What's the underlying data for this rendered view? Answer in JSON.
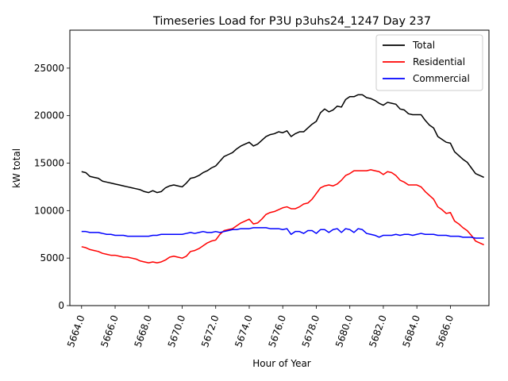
{
  "chart_data": {
    "type": "line",
    "title": "Timeseries Load for P3U p3uhs24_1247  Day 237",
    "xlabel": "Hour of Year",
    "ylabel": "kW total",
    "xlim": [
      5663.3,
      5688.3
    ],
    "ylim": [
      0,
      29000
    ],
    "xticks": [
      5664.0,
      5666.0,
      5668.0,
      5670.0,
      5672.0,
      5674.0,
      5676.0,
      5678.0,
      5680.0,
      5682.0,
      5684.0,
      5686.0
    ],
    "xtick_labels": [
      "5664.0",
      "5666.0",
      "5668.0",
      "5670.0",
      "5672.0",
      "5674.0",
      "5676.0",
      "5678.0",
      "5680.0",
      "5682.0",
      "5684.0",
      "5686.0"
    ],
    "yticks": [
      0,
      5000,
      10000,
      15000,
      20000,
      25000
    ],
    "ytick_labels": [
      "0",
      "5000",
      "10000",
      "15000",
      "20000",
      "25000"
    ],
    "legend_position": "top-right",
    "x_start": 5664.0,
    "x_step": 0.25,
    "series": [
      {
        "name": "Total",
        "color": "#000000",
        "values": [
          14100,
          14000,
          13600,
          13500,
          13400,
          13100,
          13000,
          12900,
          12800,
          12700,
          12600,
          12500,
          12400,
          12300,
          12200,
          12000,
          11900,
          12100,
          11900,
          12000,
          12400,
          12600,
          12700,
          12600,
          12500,
          12900,
          13400,
          13500,
          13700,
          14000,
          14200,
          14500,
          14700,
          15200,
          15700,
          15900,
          16100,
          16500,
          16800,
          17000,
          17200,
          16800,
          17000,
          17400,
          17800,
          18000,
          18100,
          18300,
          18200,
          18400,
          17800,
          18100,
          18300,
          18300,
          18700,
          19100,
          19400,
          20300,
          20700,
          20400,
          20600,
          21000,
          20900,
          21700,
          22000,
          22000,
          22200,
          22200,
          21900,
          21800,
          21600,
          21300,
          21100,
          21400,
          21300,
          21200,
          20700,
          20600,
          20200,
          20100,
          20100,
          20100,
          19500,
          19000,
          18700,
          17800,
          17500,
          17200,
          17100,
          16200,
          15800,
          15400,
          15100,
          14500,
          13900,
          13700,
          13500
        ]
      },
      {
        "name": "Residential",
        "color": "#ff0000",
        "values": [
          6200,
          6100,
          5900,
          5800,
          5700,
          5500,
          5400,
          5300,
          5300,
          5200,
          5100,
          5100,
          5000,
          4900,
          4700,
          4600,
          4500,
          4600,
          4500,
          4600,
          4800,
          5100,
          5200,
          5100,
          5000,
          5200,
          5700,
          5800,
          6000,
          6300,
          6600,
          6800,
          6900,
          7500,
          7900,
          8000,
          8100,
          8400,
          8700,
          8900,
          9100,
          8600,
          8700,
          9100,
          9600,
          9800,
          9900,
          10100,
          10300,
          10400,
          10200,
          10200,
          10400,
          10700,
          10800,
          11200,
          11800,
          12400,
          12600,
          12700,
          12600,
          12800,
          13200,
          13700,
          13900,
          14200,
          14200,
          14200,
          14200,
          14300,
          14200,
          14100,
          13800,
          14100,
          14000,
          13700,
          13200,
          13000,
          12700,
          12700,
          12700,
          12500,
          12000,
          11600,
          11200,
          10400,
          10100,
          9700,
          9800,
          8900,
          8600,
          8200,
          7900,
          7400,
          6800,
          6600,
          6400
        ]
      },
      {
        "name": "Commercial",
        "color": "#0000ff",
        "values": [
          7800,
          7800,
          7700,
          7700,
          7700,
          7600,
          7500,
          7500,
          7400,
          7400,
          7400,
          7300,
          7300,
          7300,
          7300,
          7300,
          7300,
          7400,
          7400,
          7500,
          7500,
          7500,
          7500,
          7500,
          7500,
          7600,
          7700,
          7600,
          7700,
          7800,
          7700,
          7700,
          7800,
          7700,
          7800,
          7900,
          8000,
          8000,
          8100,
          8100,
          8100,
          8200,
          8200,
          8200,
          8200,
          8100,
          8100,
          8100,
          8000,
          8100,
          7500,
          7800,
          7800,
          7600,
          7900,
          7900,
          7600,
          8000,
          8000,
          7700,
          8000,
          8100,
          7700,
          8100,
          8000,
          7700,
          8100,
          8000,
          7600,
          7500,
          7400,
          7200,
          7400,
          7400,
          7400,
          7500,
          7400,
          7500,
          7500,
          7400,
          7500,
          7600,
          7500,
          7500,
          7500,
          7400,
          7400,
          7400,
          7300,
          7300,
          7300,
          7200,
          7200,
          7200,
          7100,
          7100,
          7100
        ]
      }
    ]
  }
}
